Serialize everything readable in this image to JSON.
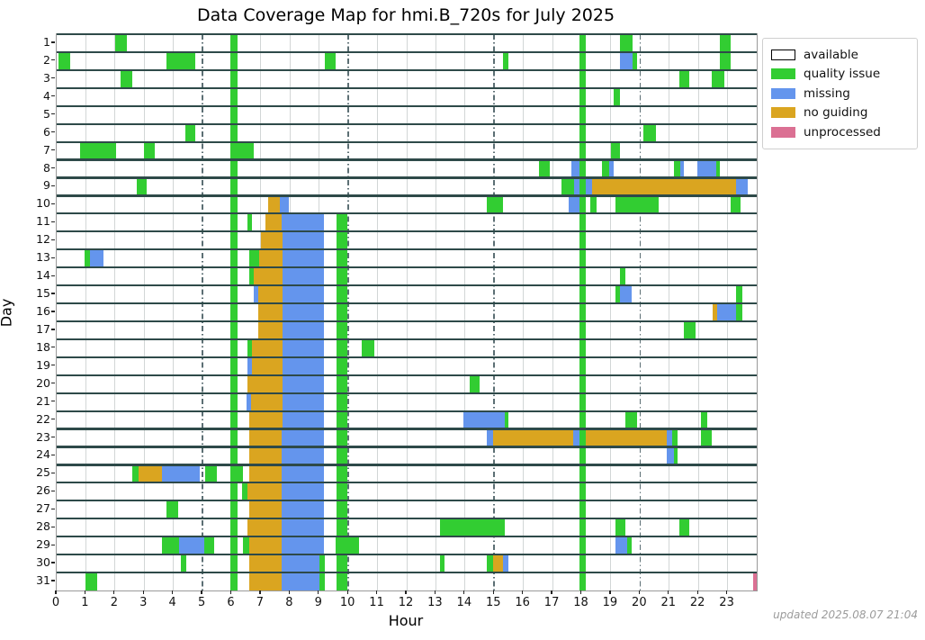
{
  "chart_data": {
    "type": "heatmap",
    "subtype": "coverage-timeline",
    "title": "Data Coverage Map for hmi.B_720s for July 2025",
    "xlabel": "Hour",
    "ylabel": "Day",
    "xlim": [
      0,
      24
    ],
    "x_ticks": [
      0,
      1,
      2,
      3,
      4,
      5,
      6,
      7,
      8,
      9,
      10,
      11,
      12,
      13,
      14,
      15,
      16,
      17,
      18,
      19,
      20,
      21,
      22,
      23
    ],
    "y_ticks": [
      1,
      2,
      3,
      4,
      5,
      6,
      7,
      8,
      9,
      10,
      11,
      12,
      13,
      14,
      15,
      16,
      17,
      18,
      19,
      20,
      21,
      22,
      23,
      24,
      25,
      26,
      27,
      28,
      29,
      30,
      31
    ],
    "grid": {
      "minor_hour_lines": [
        1,
        2,
        3,
        4,
        6,
        7,
        8,
        9,
        11,
        12,
        13,
        14,
        16,
        17,
        19,
        21,
        22,
        23
      ],
      "major_dashdot_hours": [
        5,
        10,
        15,
        20
      ],
      "minor_color": "#d2d6d6",
      "major_color": "#5c6f74",
      "day_separator_color": "#2e4a49"
    },
    "colors": {
      "available": "#ffffff",
      "quality": "#32cd32",
      "missing": "#6495ed",
      "noguiding": "#daa520",
      "unprocessed": "#db7093"
    },
    "legend": {
      "position": "top-right",
      "entries": [
        {
          "key": "available",
          "label": "available",
          "color": "#ffffff",
          "border": "#000000"
        },
        {
          "key": "quality",
          "label": "quality issue",
          "color": "#32cd32",
          "border": ""
        },
        {
          "key": "missing",
          "label": "missing",
          "color": "#6495ed",
          "border": ""
        },
        {
          "key": "noguiding",
          "label": "no guiding",
          "color": "#daa520",
          "border": ""
        },
        {
          "key": "unprocessed",
          "label": "unprocessed",
          "color": "#db7093",
          "border": ""
        }
      ]
    },
    "column_bars": [
      {
        "x0": 5.95,
        "x1": 6.2,
        "day_from": 1,
        "day_to": 31,
        "type": "quality"
      },
      {
        "x0": 17.92,
        "x1": 18.15,
        "day_from": 1,
        "day_to": 31,
        "type": "quality"
      },
      {
        "x0": 9.6,
        "x1": 9.95,
        "day_from": 11,
        "day_to": 31,
        "type": "quality"
      }
    ],
    "segments_by_day": {
      "1": [
        [
          2.0,
          2.4,
          "quality"
        ],
        [
          19.3,
          19.75,
          "quality"
        ],
        [
          22.75,
          23.1,
          "quality"
        ]
      ],
      "2": [
        [
          0.05,
          0.45,
          "quality"
        ],
        [
          3.75,
          4.75,
          "quality"
        ],
        [
          9.2,
          9.55,
          "quality"
        ],
        [
          15.3,
          15.5,
          "quality"
        ],
        [
          19.3,
          19.75,
          "missing"
        ],
        [
          19.75,
          19.9,
          "quality"
        ],
        [
          22.75,
          23.1,
          "quality"
        ]
      ],
      "3": [
        [
          2.2,
          2.6,
          "quality"
        ],
        [
          21.35,
          21.7,
          "quality"
        ],
        [
          22.45,
          22.9,
          "quality"
        ]
      ],
      "4": [
        [
          19.1,
          19.3,
          "quality"
        ]
      ],
      "5": [],
      "6": [
        [
          4.4,
          4.75,
          "quality"
        ],
        [
          20.1,
          20.55,
          "quality"
        ]
      ],
      "7": [
        [
          0.8,
          2.05,
          "quality"
        ],
        [
          3.0,
          3.35,
          "quality"
        ],
        [
          5.95,
          6.75,
          "quality"
        ],
        [
          19.0,
          19.3,
          "quality"
        ]
      ],
      "8": [
        [
          16.55,
          16.9,
          "quality"
        ],
        [
          17.65,
          17.95,
          "missing"
        ],
        [
          18.7,
          18.95,
          "quality"
        ],
        [
          18.95,
          19.1,
          "missing"
        ],
        [
          21.15,
          21.37,
          "quality"
        ],
        [
          21.37,
          21.5,
          "missing"
        ],
        [
          21.95,
          22.6,
          "missing"
        ],
        [
          22.6,
          22.75,
          "quality"
        ]
      ],
      "9": [
        [
          2.75,
          3.1,
          "quality"
        ],
        [
          17.3,
          17.75,
          "quality"
        ],
        [
          17.75,
          17.95,
          "missing"
        ],
        [
          18.15,
          18.35,
          "missing"
        ],
        [
          18.35,
          23.3,
          "noguiding"
        ],
        [
          23.3,
          23.7,
          "missing"
        ]
      ],
      "10": [
        [
          7.25,
          7.65,
          "noguiding"
        ],
        [
          7.65,
          7.95,
          "missing"
        ],
        [
          14.75,
          15.3,
          "quality"
        ],
        [
          17.55,
          17.95,
          "missing"
        ],
        [
          18.3,
          18.5,
          "quality"
        ],
        [
          19.15,
          20.65,
          "quality"
        ],
        [
          23.1,
          23.45,
          "quality"
        ]
      ],
      "11": [
        [
          6.55,
          6.7,
          "quality"
        ],
        [
          7.15,
          7.7,
          "noguiding"
        ],
        [
          7.7,
          9.17,
          "missing"
        ]
      ],
      "12": [
        [
          7.0,
          7.75,
          "noguiding"
        ],
        [
          7.75,
          9.17,
          "missing"
        ]
      ],
      "13": [
        [
          0.95,
          1.15,
          "quality"
        ],
        [
          1.15,
          1.6,
          "missing"
        ],
        [
          6.6,
          6.95,
          "quality"
        ],
        [
          6.95,
          7.75,
          "noguiding"
        ],
        [
          7.75,
          9.17,
          "missing"
        ]
      ],
      "14": [
        [
          6.6,
          6.75,
          "quality"
        ],
        [
          6.75,
          7.75,
          "noguiding"
        ],
        [
          7.75,
          9.17,
          "missing"
        ],
        [
          19.3,
          19.5,
          "quality"
        ]
      ],
      "15": [
        [
          6.75,
          6.9,
          "missing"
        ],
        [
          6.9,
          7.75,
          "noguiding"
        ],
        [
          7.75,
          9.17,
          "missing"
        ],
        [
          19.15,
          19.3,
          "quality"
        ],
        [
          19.3,
          19.7,
          "missing"
        ],
        [
          23.3,
          23.5,
          "quality"
        ]
      ],
      "16": [
        [
          6.9,
          7.75,
          "noguiding"
        ],
        [
          7.75,
          9.17,
          "missing"
        ],
        [
          22.5,
          22.65,
          "noguiding"
        ],
        [
          22.65,
          23.3,
          "missing"
        ],
        [
          23.3,
          23.5,
          "quality"
        ]
      ],
      "17": [
        [
          6.9,
          7.75,
          "noguiding"
        ],
        [
          7.75,
          9.17,
          "missing"
        ],
        [
          21.5,
          21.9,
          "quality"
        ]
      ],
      "18": [
        [
          6.55,
          6.7,
          "quality"
        ],
        [
          6.7,
          7.75,
          "noguiding"
        ],
        [
          7.75,
          9.17,
          "missing"
        ],
        [
          10.45,
          10.9,
          "quality"
        ]
      ],
      "19": [
        [
          6.55,
          6.7,
          "missing"
        ],
        [
          6.7,
          7.75,
          "noguiding"
        ],
        [
          7.75,
          9.17,
          "missing"
        ]
      ],
      "20": [
        [
          6.55,
          7.75,
          "noguiding"
        ],
        [
          7.75,
          9.17,
          "missing"
        ],
        [
          14.15,
          14.5,
          "quality"
        ]
      ],
      "21": [
        [
          6.5,
          6.65,
          "missing"
        ],
        [
          6.65,
          7.75,
          "noguiding"
        ],
        [
          7.75,
          9.17,
          "missing"
        ]
      ],
      "22": [
        [
          6.6,
          7.75,
          "noguiding"
        ],
        [
          7.75,
          9.17,
          "missing"
        ],
        [
          13.95,
          15.35,
          "missing"
        ],
        [
          15.35,
          15.5,
          "quality"
        ],
        [
          19.5,
          19.9,
          "quality"
        ],
        [
          22.1,
          22.3,
          "quality"
        ]
      ],
      "23": [
        [
          6.6,
          7.7,
          "noguiding"
        ],
        [
          7.7,
          9.17,
          "missing"
        ],
        [
          14.75,
          14.95,
          "missing"
        ],
        [
          14.95,
          17.7,
          "noguiding"
        ],
        [
          17.7,
          17.92,
          "missing"
        ],
        [
          18.15,
          20.9,
          "noguiding"
        ],
        [
          20.9,
          21.1,
          "missing"
        ],
        [
          21.1,
          21.3,
          "quality"
        ],
        [
          22.1,
          22.45,
          "quality"
        ]
      ],
      "24": [
        [
          6.6,
          7.7,
          "noguiding"
        ],
        [
          7.7,
          9.17,
          "missing"
        ],
        [
          20.9,
          21.15,
          "missing"
        ],
        [
          21.15,
          21.3,
          "quality"
        ]
      ],
      "25": [
        [
          2.6,
          2.8,
          "quality"
        ],
        [
          2.8,
          3.6,
          "noguiding"
        ],
        [
          3.6,
          4.9,
          "missing"
        ],
        [
          5.1,
          5.5,
          "quality"
        ],
        [
          5.95,
          6.4,
          "quality"
        ],
        [
          6.6,
          7.7,
          "noguiding"
        ],
        [
          7.7,
          9.17,
          "missing"
        ]
      ],
      "26": [
        [
          6.35,
          6.55,
          "quality"
        ],
        [
          6.55,
          7.7,
          "noguiding"
        ],
        [
          7.7,
          9.17,
          "missing"
        ]
      ],
      "27": [
        [
          3.75,
          4.15,
          "quality"
        ],
        [
          6.6,
          7.7,
          "noguiding"
        ],
        [
          7.7,
          9.17,
          "missing"
        ]
      ],
      "28": [
        [
          6.55,
          7.7,
          "noguiding"
        ],
        [
          7.7,
          9.17,
          "missing"
        ],
        [
          13.15,
          15.35,
          "quality"
        ],
        [
          19.15,
          19.5,
          "quality"
        ],
        [
          21.35,
          21.7,
          "quality"
        ]
      ],
      "29": [
        [
          3.6,
          4.2,
          "quality"
        ],
        [
          4.2,
          5.05,
          "missing"
        ],
        [
          5.05,
          5.4,
          "quality"
        ],
        [
          6.4,
          6.6,
          "quality"
        ],
        [
          6.6,
          7.7,
          "noguiding"
        ],
        [
          7.7,
          9.17,
          "missing"
        ],
        [
          9.55,
          10.35,
          "quality"
        ],
        [
          19.15,
          19.55,
          "missing"
        ],
        [
          19.55,
          19.7,
          "quality"
        ]
      ],
      "30": [
        [
          4.25,
          4.45,
          "quality"
        ],
        [
          6.6,
          7.7,
          "noguiding"
        ],
        [
          7.7,
          9.0,
          "missing"
        ],
        [
          9.0,
          9.2,
          "quality"
        ],
        [
          13.15,
          13.3,
          "quality"
        ],
        [
          14.75,
          14.95,
          "quality"
        ],
        [
          14.95,
          15.3,
          "noguiding"
        ],
        [
          15.3,
          15.5,
          "missing"
        ]
      ],
      "31": [
        [
          1.0,
          1.4,
          "quality"
        ],
        [
          6.6,
          7.7,
          "noguiding"
        ],
        [
          7.7,
          9.0,
          "missing"
        ],
        [
          9.0,
          9.2,
          "quality"
        ],
        [
          23.87,
          24.0,
          "unprocessed"
        ]
      ]
    }
  },
  "footer": {
    "updated_text": "updated 2025.08.07 21:04"
  }
}
